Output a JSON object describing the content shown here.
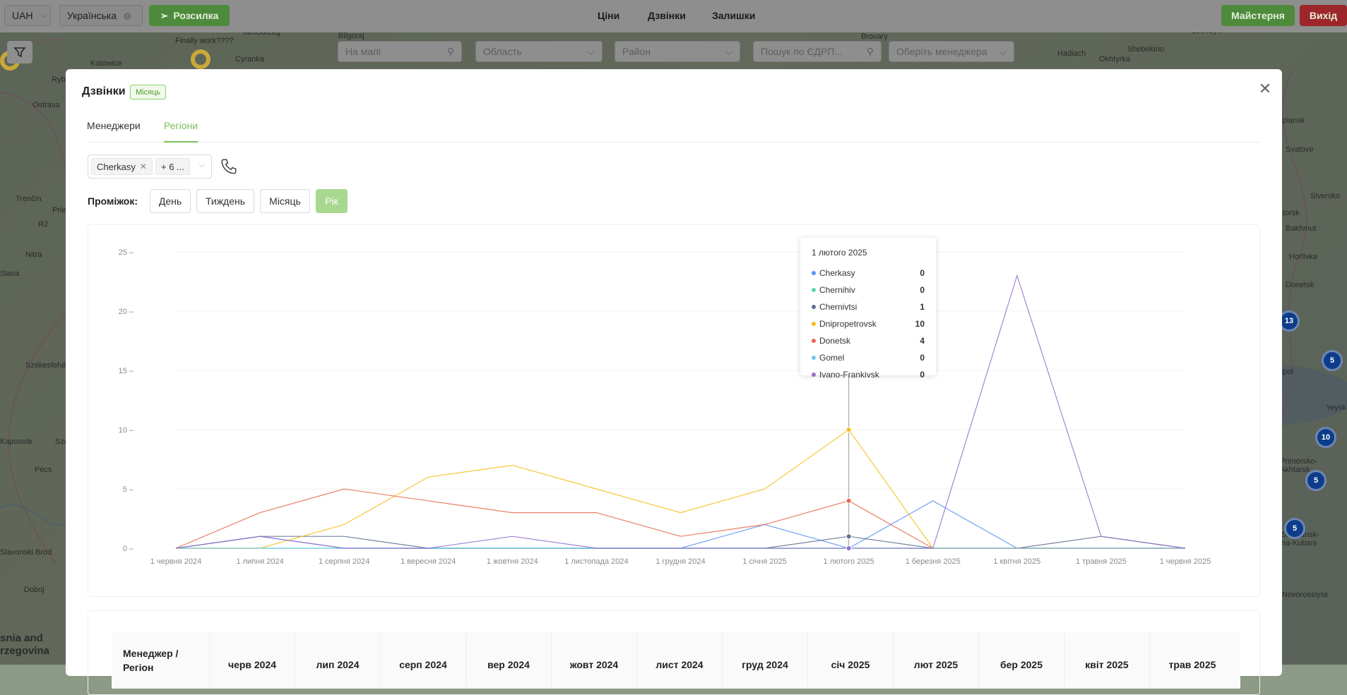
{
  "map": {
    "labels": [
      "Katowice",
      "Cyranka",
      "Finally work????",
      "Tarnobrzeg",
      "Bilgoraj",
      "Brovary",
      "Hadiach",
      "Okhtyrka",
      "Shebekino",
      "Lebedyn",
      "Ostrava",
      "Trenčín",
      "Nitra",
      "Slava",
      "Székesfehér",
      "Kaposvár",
      "Pécs",
      "Slavonski Brod",
      "Doboj",
      "snia and\nrzegovina",
      "Prie",
      "Sze",
      "R2",
      "Ryb",
      "Kupiansk",
      "Svatove",
      "Siversko",
      "Bakhmut",
      "Horlivka",
      "Donetsk",
      "ariupol",
      "Yeysk",
      "Primorsko-\nAkhtarsk",
      "Slavyansk-\nna-Kubani",
      "Novorossiysk",
      "rmatorsk"
    ],
    "clusters": [
      "13",
      "5",
      "10",
      "5",
      "5"
    ]
  },
  "topbar": {
    "currency": "UAH",
    "language": "Українська",
    "broadcast_label": "Розсилка",
    "nav": [
      "Ціни",
      "Дзвінки",
      "Залишки"
    ],
    "workshop_label": "Майстерня",
    "logout_label": "Вихід",
    "colors": {
      "green": "#4e9a3a",
      "red": "#a92b2f"
    }
  },
  "filters": {
    "map_search_placeholder": "На мапі",
    "region_placeholder": "Область",
    "district_placeholder": "Район",
    "edrpou_placeholder": "Пошук по ЄДРП...",
    "manager_placeholder": "Оберіть менеджера"
  },
  "modal": {
    "title": "Дзвінки",
    "badge": "Місяць",
    "tabs": [
      "Менеджери",
      "Регіони"
    ],
    "active_tab": "Регіони",
    "selected_region": "Cherkasy",
    "more_regions": "+ 6 ...",
    "period_label": "Проміжок:",
    "periods": [
      "День",
      "Тиждень",
      "Місяць",
      "Рік"
    ],
    "active_period": "Рік"
  },
  "chart_data": {
    "type": "line",
    "title": "",
    "xlabel": "",
    "ylabel": "",
    "ylim": [
      0,
      25
    ],
    "yticks": [
      0,
      5,
      10,
      15,
      20,
      25
    ],
    "x": [
      "1 червня 2024",
      "1 липня 2024",
      "1 серпня 2024",
      "1 вересня 2024",
      "1 жовтня 2024",
      "1 листопада 2024",
      "1 грудня 2024",
      "1 січня 2025",
      "1 лютого 2025",
      "1 березня 2025",
      "1 квітня 2025",
      "1 травня 2025",
      "1 червня 2025"
    ],
    "series": [
      {
        "name": "Cherkasy",
        "color": "#5b8ff9",
        "values": [
          0,
          1,
          0,
          0,
          0,
          0,
          0,
          2,
          0,
          4,
          0,
          0,
          0
        ]
      },
      {
        "name": "Chernihiv",
        "color": "#5ad8a6",
        "values": [
          0,
          0,
          0,
          0,
          0,
          0,
          0,
          0,
          0,
          0,
          0,
          0,
          0
        ]
      },
      {
        "name": "Chernivtsi",
        "color": "#5d7092",
        "values": [
          0,
          1,
          1,
          0,
          0,
          0,
          0,
          0,
          1,
          0,
          0,
          1,
          0
        ]
      },
      {
        "name": "Dnipropetrovsk",
        "color": "#f6bd16",
        "values": [
          0,
          0,
          2,
          6,
          7,
          5,
          3,
          5,
          10,
          0,
          0,
          0,
          0
        ]
      },
      {
        "name": "Donetsk",
        "color": "#e8684a",
        "values": [
          0,
          3,
          5,
          4,
          3,
          3,
          1,
          2,
          4,
          0,
          0,
          0,
          0
        ]
      },
      {
        "name": "Gomel",
        "color": "#6dc8ec",
        "values": [
          0,
          0,
          0,
          0,
          0,
          0,
          0,
          0,
          0,
          0,
          0,
          0,
          0
        ]
      },
      {
        "name": "Ivano-Frankivsk",
        "color": "#9270ca",
        "values": [
          0,
          1,
          0,
          0,
          1,
          0,
          0,
          0,
          0,
          0,
          23,
          1,
          0
        ]
      }
    ],
    "tooltip": {
      "title": "1 лютого 2025",
      "index": 8,
      "rows": [
        {
          "name": "Cherkasy",
          "value": "0"
        },
        {
          "name": "Chernihiv",
          "value": "0"
        },
        {
          "name": "Chernivtsi",
          "value": "1"
        },
        {
          "name": "Dnipropetrovsk",
          "value": "10"
        },
        {
          "name": "Donetsk",
          "value": "4"
        },
        {
          "name": "Gomel",
          "value": "0"
        },
        {
          "name": "Ivano-Frankivsk",
          "value": "0"
        }
      ]
    }
  },
  "table": {
    "first_header": "Менеджер /\nРегіон",
    "headers": [
      "черв 2024",
      "лип 2024",
      "серп 2024",
      "вер 2024",
      "жовт 2024",
      "лист 2024",
      "груд 2024",
      "січ 2025",
      "лют 2025",
      "бер 2025",
      "квіт 2025",
      "трав 2025"
    ]
  }
}
